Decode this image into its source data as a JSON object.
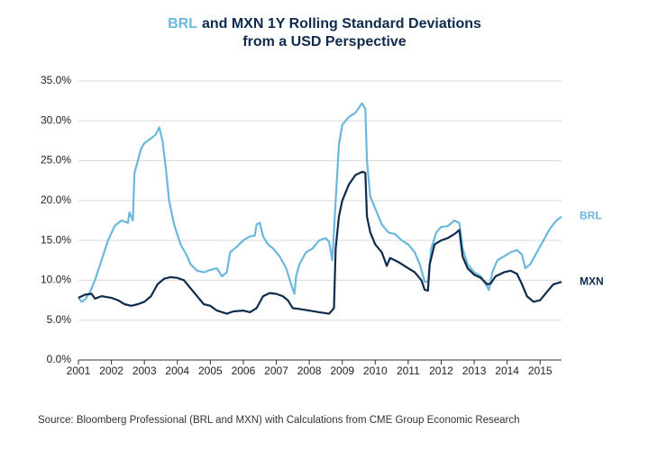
{
  "chart_data": {
    "type": "line",
    "title": {
      "highlight": "BRL",
      "rest": "and MXN 1Y Rolling Standard Deviations",
      "line2": "from a USD Perspective"
    },
    "source": "Source: Bloomberg Professional (BRL and MXN) with Calculations from CME Group Economic Research",
    "xlim": [
      2001,
      2015.65
    ],
    "xticks": [
      2001,
      2002,
      2003,
      2004,
      2005,
      2006,
      2007,
      2008,
      2009,
      2010,
      2011,
      2012,
      2013,
      2014,
      2015
    ],
    "ylim": [
      0,
      35
    ],
    "yticks": [
      {
        "value": 0,
        "label": "0.0%"
      },
      {
        "value": 5,
        "label": "5.0%"
      },
      {
        "value": 10,
        "label": "10.0%"
      },
      {
        "value": 15,
        "label": "15.0%"
      },
      {
        "value": 20,
        "label": "20.0%"
      },
      {
        "value": 25,
        "label": "25.0%"
      },
      {
        "value": 30,
        "label": "30.0%"
      },
      {
        "value": 35,
        "label": "35.0%"
      }
    ],
    "grid": true,
    "series": [
      {
        "name": "BRL",
        "color": "#6bb8dc",
        "x": [
          2001.0,
          2001.1,
          2001.2,
          2001.35,
          2001.5,
          2001.7,
          2001.9,
          2002.1,
          2002.3,
          2002.5,
          2002.55,
          2002.65,
          2002.7,
          2002.8,
          2002.9,
          2003.0,
          2003.2,
          2003.35,
          2003.45,
          2003.55,
          2003.65,
          2003.75,
          2003.9,
          2004.1,
          2004.3,
          2004.4,
          2004.6,
          2004.8,
          2005.0,
          2005.2,
          2005.35,
          2005.5,
          2005.6,
          2005.8,
          2006.0,
          2006.2,
          2006.35,
          2006.4,
          2006.5,
          2006.6,
          2006.75,
          2006.9,
          2007.1,
          2007.3,
          2007.45,
          2007.55,
          2007.6,
          2007.7,
          2007.9,
          2008.1,
          2008.3,
          2008.5,
          2008.6,
          2008.7,
          2008.8,
          2008.9,
          2009.0,
          2009.2,
          2009.4,
          2009.6,
          2009.7,
          2009.75,
          2009.85,
          2010.0,
          2010.2,
          2010.4,
          2010.6,
          2010.8,
          2011.0,
          2011.2,
          2011.35,
          2011.5,
          2011.6,
          2011.7,
          2011.85,
          2012.0,
          2012.2,
          2012.4,
          2012.55,
          2012.65,
          2012.8,
          2013.0,
          2013.2,
          2013.35,
          2013.45,
          2013.55,
          2013.7,
          2013.9,
          2014.1,
          2014.3,
          2014.45,
          2014.55,
          2014.7,
          2014.9,
          2015.1,
          2015.3,
          2015.5,
          2015.65
        ],
        "values": [
          7.8,
          7.3,
          7.6,
          8.5,
          10,
          12.5,
          15,
          16.8,
          17.5,
          17.2,
          18.5,
          17.5,
          23.5,
          25,
          26.5,
          27.2,
          27.8,
          28.3,
          29.2,
          27.5,
          24,
          20,
          17,
          14.5,
          13,
          12,
          11.2,
          11,
          11.3,
          11.5,
          10.5,
          11,
          13.5,
          14.2,
          15,
          15.5,
          15.6,
          17,
          17.2,
          15.5,
          14.5,
          14,
          13,
          11.5,
          9.5,
          8.3,
          10.5,
          12,
          13.5,
          14,
          15,
          15.3,
          14.8,
          12.5,
          20,
          27,
          29.5,
          30.5,
          31,
          32.2,
          31.5,
          25,
          20.5,
          19,
          17,
          16,
          15.8,
          15,
          14.5,
          13.5,
          12,
          9.8,
          9.8,
          14,
          16,
          16.7,
          16.8,
          17.5,
          17.2,
          14,
          12,
          11,
          10.5,
          9.5,
          8.8,
          11,
          12.5,
          13,
          13.5,
          13.8,
          13.2,
          11.5,
          12,
          13.5,
          15,
          16.5,
          17.5,
          18
        ]
      },
      {
        "name": "MXN",
        "color": "#0e2b4d",
        "x": [
          2001.0,
          2001.2,
          2001.4,
          2001.5,
          2001.7,
          2002.0,
          2002.2,
          2002.4,
          2002.6,
          2002.8,
          2003.0,
          2003.2,
          2003.4,
          2003.6,
          2003.8,
          2004.0,
          2004.2,
          2004.4,
          2004.6,
          2004.8,
          2005.0,
          2005.2,
          2005.5,
          2005.7,
          2006.0,
          2006.2,
          2006.4,
          2006.6,
          2006.8,
          2007.0,
          2007.2,
          2007.35,
          2007.5,
          2007.7,
          2008.0,
          2008.3,
          2008.6,
          2008.75,
          2008.8,
          2008.9,
          2009.0,
          2009.2,
          2009.4,
          2009.6,
          2009.7,
          2009.75,
          2009.85,
          2010.0,
          2010.2,
          2010.35,
          2010.45,
          2010.7,
          2011.0,
          2011.2,
          2011.4,
          2011.5,
          2011.6,
          2011.65,
          2011.8,
          2012.0,
          2012.2,
          2012.4,
          2012.55,
          2012.65,
          2012.8,
          2013.0,
          2013.2,
          2013.4,
          2013.5,
          2013.65,
          2013.9,
          2014.1,
          2014.3,
          2014.45,
          2014.6,
          2014.8,
          2015.0,
          2015.2,
          2015.4,
          2015.65
        ],
        "values": [
          7.8,
          8.2,
          8.3,
          7.7,
          8.0,
          7.8,
          7.5,
          7.0,
          6.8,
          7.0,
          7.3,
          8.0,
          9.5,
          10.2,
          10.4,
          10.3,
          10.0,
          9.0,
          8.0,
          7.0,
          6.8,
          6.2,
          5.8,
          6.1,
          6.2,
          6.0,
          6.5,
          8.0,
          8.4,
          8.3,
          8.0,
          7.5,
          6.5,
          6.4,
          6.2,
          6.0,
          5.8,
          6.5,
          14,
          18,
          20,
          22,
          23.2,
          23.6,
          23.5,
          18,
          16,
          14.5,
          13.5,
          11.8,
          12.8,
          12.3,
          11.5,
          11.0,
          10.0,
          8.8,
          8.7,
          12,
          14.5,
          15,
          15.3,
          15.8,
          16.3,
          13,
          11.5,
          10.7,
          10.3,
          9.5,
          9.6,
          10.5,
          11,
          11.2,
          10.8,
          9.5,
          8,
          7.3,
          7.5,
          8.5,
          9.5,
          9.8
        ]
      }
    ]
  }
}
